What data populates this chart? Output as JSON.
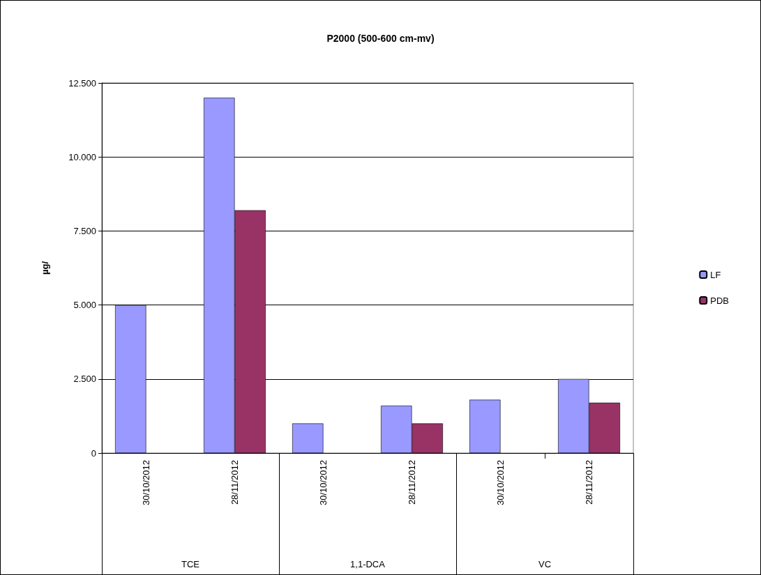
{
  "chart_data": {
    "type": "bar",
    "title": "P2000 (500-600 cm-mv)",
    "ylabel": "µg/",
    "categories": [
      "30/10/2012",
      "28/11/2012",
      "30/10/2012",
      "28/11/2012",
      "30/10/2012",
      "28/11/2012"
    ],
    "annotations": [
      "TCE",
      "1,1-DCA",
      "VC"
    ],
    "series": [
      {
        "name": "LF",
        "color": "#9999ff",
        "values": [
          5000,
          12000,
          1000,
          1600,
          1800,
          2500
        ]
      },
      {
        "name": "PDB",
        "color": "#993366",
        "values": [
          null,
          8200,
          null,
          1000,
          null,
          1700
        ]
      }
    ],
    "ylim": [
      0,
      12500
    ],
    "yticks": [
      0,
      {
        "value": 2500,
        "label": "2.500"
      },
      {
        "value": 5000,
        "label": "5.000"
      },
      {
        "value": 7500,
        "label": "7.500"
      },
      {
        "value": 10000,
        "label": "10.000"
      },
      {
        "value": 12500,
        "label": "12.500"
      }
    ],
    "grid": "y",
    "legend": "right"
  }
}
